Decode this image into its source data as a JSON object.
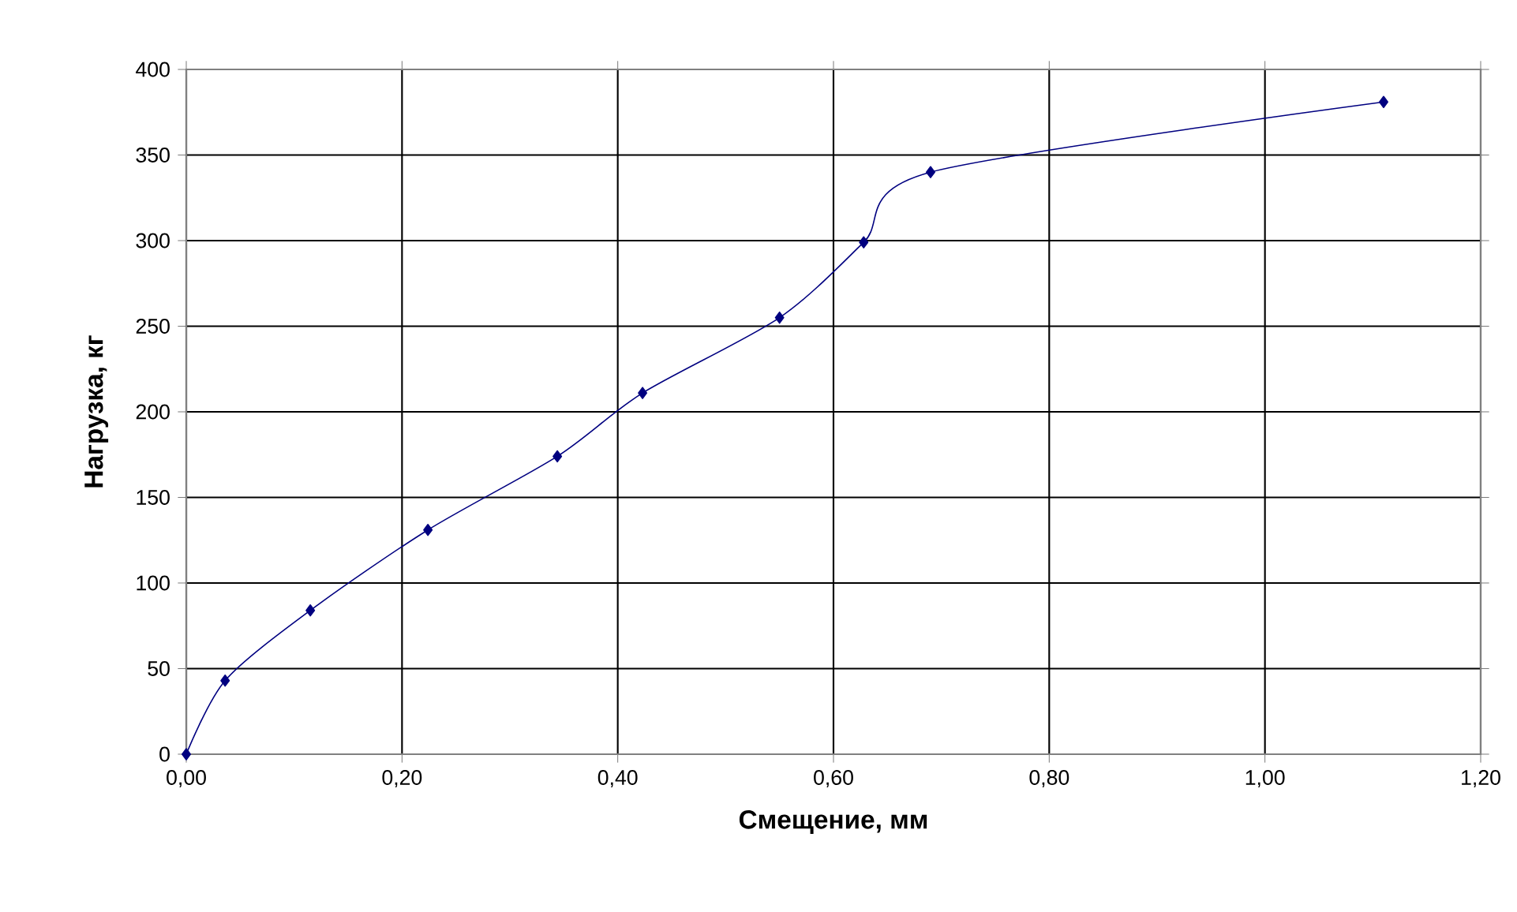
{
  "chart_data": {
    "type": "line",
    "xlabel": "Смещение, мм",
    "ylabel": "Нагрузка, кг",
    "x": [
      0,
      0.036,
      0.115,
      0.224,
      0.344,
      0.423,
      0.55,
      0.628,
      0.69,
      1.11
    ],
    "values": [
      0,
      43,
      84,
      131,
      174,
      211,
      255,
      299,
      340,
      381
    ],
    "color": "#000080",
    "marker": "diamond",
    "line_style": "solid",
    "grid": true,
    "xlim": [
      0,
      1.2
    ],
    "ylim": [
      0,
      400
    ],
    "xticks": [
      {
        "value": 0,
        "label": "0,00"
      },
      {
        "value": 0.2,
        "label": "0,20"
      },
      {
        "value": 0.4,
        "label": "0,40"
      },
      {
        "value": 0.6,
        "label": "0,60"
      },
      {
        "value": 0.8,
        "label": "0,80"
      },
      {
        "value": 1.0,
        "label": "1,00"
      },
      {
        "value": 1.2,
        "label": "1,20"
      }
    ],
    "yticks": [
      0,
      50,
      100,
      150,
      200,
      250,
      300,
      350,
      400
    ]
  }
}
